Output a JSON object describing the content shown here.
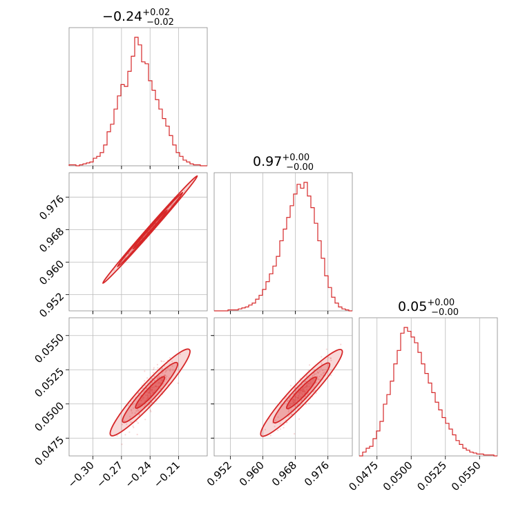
{
  "accent_color": "#d62728",
  "chart_data": {
    "type": "corner",
    "grid": true,
    "parameters": [
      {
        "title_main": "−0.24",
        "title_plus": "+0.02",
        "title_minus": "−0.02",
        "median": -0.24,
        "range": [
          -0.325,
          -0.18
        ],
        "ticks": [
          -0.3,
          -0.27,
          -0.24,
          -0.21
        ],
        "tick_labels": [
          "−0.30",
          "−0.27",
          "−0.24",
          "−0.21"
        ]
      },
      {
        "title_main": "0.97",
        "title_plus": "+0.00",
        "title_minus": "−0.00",
        "median": 0.9695,
        "range": [
          0.948,
          0.982
        ],
        "ticks": [
          0.952,
          0.96,
          0.968,
          0.976
        ],
        "tick_labels": [
          "0.952",
          "0.960",
          "0.968",
          "0.976"
        ]
      },
      {
        "title_main": "0.05",
        "title_plus": "+0.00",
        "title_minus": "−0.00",
        "median": 0.05,
        "range": [
          0.0462,
          0.0563
        ],
        "ticks": [
          0.0475,
          0.05,
          0.0525,
          0.055
        ],
        "tick_labels": [
          "0.0475",
          "0.0500",
          "0.0525",
          "0.0550"
        ]
      }
    ],
    "histograms": [
      {
        "param": 0,
        "bins": 40,
        "counts": [
          1,
          1,
          0,
          1,
          2,
          3,
          4,
          8,
          10,
          14,
          22,
          36,
          44,
          60,
          74,
          86,
          84,
          100,
          116,
          136,
          128,
          110,
          108,
          90,
          80,
          70,
          60,
          50,
          42,
          32,
          22,
          14,
          10,
          6,
          4,
          2,
          1,
          1,
          0,
          0
        ]
      },
      {
        "param": 1,
        "bins": 40,
        "counts": [
          0,
          0,
          0,
          0,
          1,
          1,
          1,
          2,
          3,
          4,
          6,
          8,
          12,
          16,
          22,
          30,
          38,
          46,
          56,
          72,
          84,
          96,
          108,
          120,
          130,
          126,
          132,
          118,
          106,
          90,
          72,
          54,
          36,
          24,
          14,
          8,
          4,
          2,
          1,
          0
        ]
      },
      {
        "param": 2,
        "bins": 40,
        "counts": [
          0,
          4,
          8,
          10,
          18,
          26,
          36,
          54,
          64,
          78,
          96,
          110,
          128,
          134,
          130,
          124,
          118,
          108,
          96,
          86,
          76,
          66,
          56,
          48,
          40,
          34,
          28,
          22,
          16,
          12,
          8,
          6,
          4,
          3,
          2,
          2,
          1,
          1,
          1,
          0
        ]
      }
    ],
    "correlations": [
      {
        "params": [
          0,
          1
        ],
        "y_at_x": [
          [
            -0.3,
            0.952
          ],
          [
            -0.21,
            0.976
          ]
        ],
        "width": 0.0006
      },
      {
        "params": [
          0,
          2
        ],
        "y_at_x": [
          [
            -0.28,
            0.0478
          ],
          [
            -0.205,
            0.0535
          ]
        ],
        "width": 0.0006
      },
      {
        "params": [
          1,
          2
        ],
        "y_at_x": [
          [
            0.96,
            0.0478
          ],
          [
            0.978,
            0.0535
          ]
        ],
        "width": 0.0006
      }
    ]
  }
}
